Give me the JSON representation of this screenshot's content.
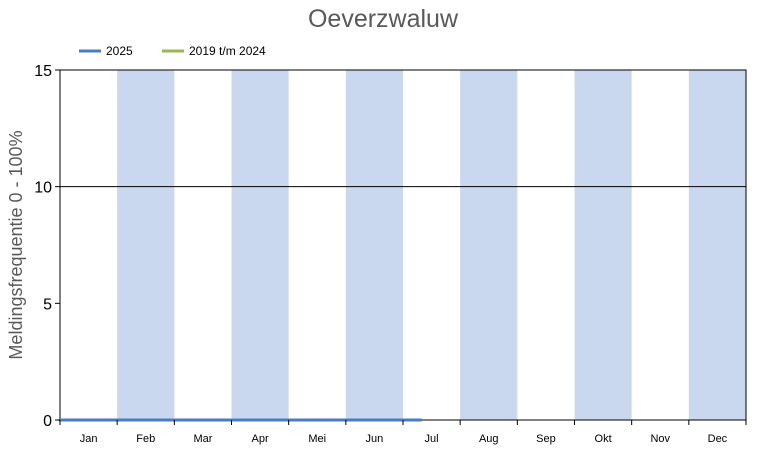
{
  "chart_data": {
    "type": "line",
    "title": "Oeverzwaluw",
    "ylabel": "Meldingsfrequentie 0 - 100%",
    "xlabel": "",
    "months": [
      "Jan",
      "Feb",
      "Mar",
      "Apr",
      "Mei",
      "Jun",
      "Jul",
      "Aug",
      "Sep",
      "Okt",
      "Nov",
      "Dec"
    ],
    "yticks": [
      0,
      5,
      10,
      15
    ],
    "ylim": [
      0,
      15
    ],
    "xlim": [
      0,
      365
    ],
    "grid": "horizontal line at 10",
    "legend_position": "top-left",
    "shaded_months": [
      "Feb",
      "Apr",
      "Jun",
      "Aug",
      "Okt",
      "Dec"
    ],
    "colors": {
      "shade": "#c9d8ee",
      "series_2025": "#4a7cc0",
      "series_hist": "#96bb4d"
    },
    "series": [
      {
        "name": "2025",
        "x": [
          0,
          20,
          40,
          60,
          80,
          90,
          95,
          98,
          100,
          102,
          104,
          106,
          108,
          110,
          112,
          114,
          116,
          118,
          120,
          122,
          124,
          126,
          128,
          130,
          132,
          134,
          136,
          138,
          140,
          142,
          144,
          146,
          148,
          150,
          152,
          154,
          156,
          158,
          160,
          162,
          164,
          166,
          168,
          170,
          172,
          174,
          176,
          178,
          180,
          182,
          184,
          186,
          188,
          190,
          192
        ],
        "y": [
          0,
          0,
          0,
          0,
          0,
          0,
          0,
          0,
          0,
          0,
          0,
          0,
          0,
          0,
          0,
          0,
          0,
          0,
          0,
          0,
          0,
          0,
          0,
          0,
          0,
          0,
          0,
          0,
          0,
          0,
          0,
          0,
          0,
          0,
          0,
          0,
          0,
          0,
          0,
          0,
          0,
          0,
          0,
          0,
          0,
          0,
          0,
          0,
          0,
          0,
          0,
          0,
          0,
          0,
          0
        ]
      },
      {
        "name": "2019 t/m 2024",
        "x": [
          0
        ],
        "y": [
          0
        ]
      }
    ]
  }
}
